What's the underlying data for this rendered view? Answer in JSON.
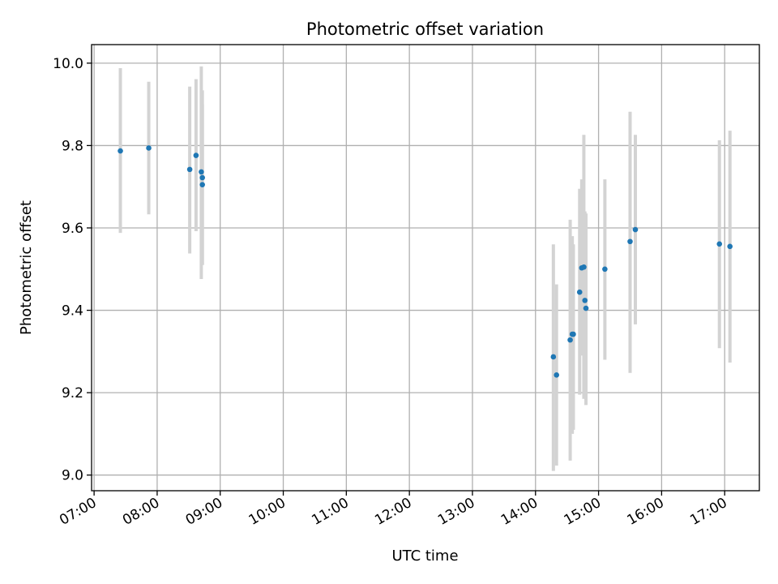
{
  "chart_data": {
    "type": "scatter",
    "title": "Photometric offset variation",
    "xlabel": "UTC time",
    "ylabel": "Photometric offset",
    "x_tick_labels": [
      "07:00",
      "08:00",
      "09:00",
      "10:00",
      "11:00",
      "12:00",
      "13:00",
      "14:00",
      "15:00",
      "16:00",
      "17:00"
    ],
    "x_ticks_hours": [
      7,
      8,
      9,
      10,
      11,
      12,
      13,
      14,
      15,
      16,
      17
    ],
    "xlim_hours": [
      6.96,
      17.55
    ],
    "y_ticks": [
      9.0,
      9.2,
      9.4,
      9.6,
      9.8,
      10.0
    ],
    "y_tick_labels": [
      "9.0",
      "9.2",
      "9.4",
      "9.6",
      "9.8",
      "10.0"
    ],
    "ylim": [
      8.962,
      10.045
    ],
    "grid": true,
    "colors": {
      "point": "#1f77b4",
      "errorbar": "#d3d3d3",
      "grid": "#b0b0b0"
    },
    "points": [
      {
        "t": "07:25",
        "y": 9.787,
        "lo": 9.588,
        "hi": 9.988
      },
      {
        "t": "07:52",
        "y": 9.794,
        "lo": 9.633,
        "hi": 9.955
      },
      {
        "t": "08:31",
        "y": 9.742,
        "lo": 9.538,
        "hi": 9.943
      },
      {
        "t": "08:37",
        "y": 9.776,
        "lo": 9.592,
        "hi": 9.961
      },
      {
        "t": "08:42",
        "y": 9.736,
        "lo": 9.476,
        "hi": 9.992
      },
      {
        "t": "08:43",
        "y": 9.722,
        "lo": 9.51,
        "hi": 9.934
      },
      {
        "t": "08:43",
        "y": 9.705,
        "lo": 9.511,
        "hi": 9.9
      },
      {
        "t": "14:17",
        "y": 9.287,
        "lo": 9.01,
        "hi": 9.56
      },
      {
        "t": "14:20",
        "y": 9.243,
        "lo": 9.023,
        "hi": 9.463
      },
      {
        "t": "14:33",
        "y": 9.328,
        "lo": 9.035,
        "hi": 9.62
      },
      {
        "t": "14:35",
        "y": 9.342,
        "lo": 9.1,
        "hi": 9.58
      },
      {
        "t": "14:36",
        "y": 9.342,
        "lo": 9.11,
        "hi": 9.56
      },
      {
        "t": "14:42",
        "y": 9.444,
        "lo": 9.195,
        "hi": 9.695
      },
      {
        "t": "14:44",
        "y": 9.503,
        "lo": 9.29,
        "hi": 9.718
      },
      {
        "t": "14:46",
        "y": 9.505,
        "lo": 9.185,
        "hi": 9.826
      },
      {
        "t": "14:47",
        "y": 9.424,
        "lo": 9.205,
        "hi": 9.64
      },
      {
        "t": "14:48",
        "y": 9.405,
        "lo": 9.17,
        "hi": 9.635
      },
      {
        "t": "15:06",
        "y": 9.5,
        "lo": 9.28,
        "hi": 9.718
      },
      {
        "t": "15:30",
        "y": 9.567,
        "lo": 9.248,
        "hi": 9.882
      },
      {
        "t": "15:35",
        "y": 9.596,
        "lo": 9.366,
        "hi": 9.826
      },
      {
        "t": "16:55",
        "y": 9.561,
        "lo": 9.308,
        "hi": 9.813
      },
      {
        "t": "17:05",
        "y": 9.555,
        "lo": 9.273,
        "hi": 9.836
      }
    ]
  }
}
